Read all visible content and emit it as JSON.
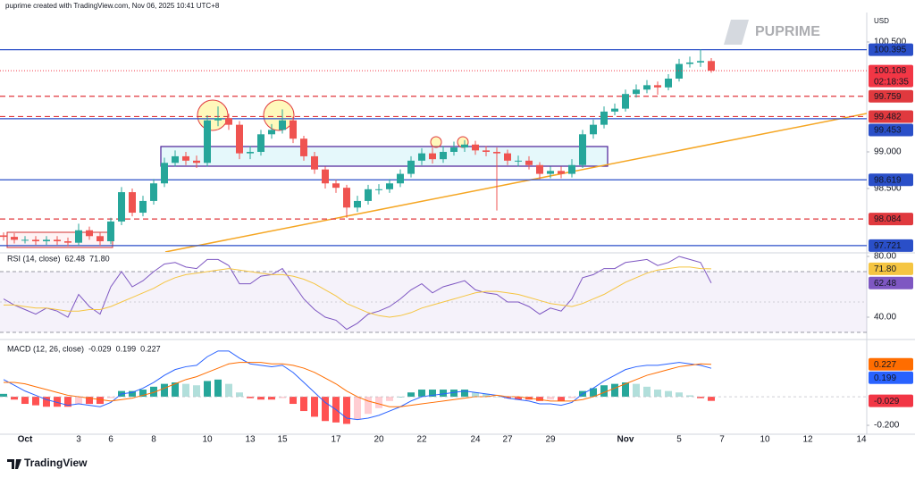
{
  "header": "puprime created with TradingView.com, Nov 06, 2025 10:41 UTC+8",
  "watermark": "PUPRIME",
  "footer": "TradingView",
  "chart_data": [
    {
      "type": "candlestick",
      "y_unit": "USD",
      "categories": [
        null,
        null,
        "Oct",
        null,
        null,
        null,
        null,
        "3",
        null,
        null,
        "6",
        null,
        null,
        null,
        "8",
        null,
        null,
        null,
        null,
        "10",
        null,
        null,
        null,
        "13",
        null,
        null,
        "15",
        null,
        null,
        null,
        null,
        "17",
        null,
        null,
        null,
        "20",
        null,
        null,
        null,
        "22",
        null,
        null,
        null,
        null,
        "24",
        null,
        null,
        "27",
        null,
        null,
        null,
        "29",
        null,
        null,
        null,
        null,
        null,
        null,
        "Nov",
        null,
        null,
        null,
        null,
        "5",
        null,
        null,
        null,
        "7",
        null,
        null,
        null,
        "10",
        null,
        null,
        null,
        "12",
        null,
        null,
        null,
        null,
        "14"
      ],
      "open": [
        97.86,
        97.84,
        97.8,
        97.8,
        97.78,
        97.8,
        97.78,
        97.76,
        97.93,
        97.85,
        97.78,
        98.05,
        98.45,
        98.17,
        98.33,
        98.57,
        98.85,
        98.94,
        98.88,
        98.85,
        99.43,
        99.46,
        99.37,
        98.98,
        99.0,
        99.24,
        99.3,
        99.43,
        99.18,
        98.94,
        98.76,
        98.57,
        98.51,
        98.24,
        98.33,
        98.49,
        98.49,
        98.57,
        98.7,
        98.88,
        98.98,
        98.9,
        99.0,
        99.06,
        99.1,
        99.02,
        99.0,
        98.98,
        98.88,
        98.88,
        98.82,
        98.7,
        98.74,
        98.7,
        98.82,
        99.24,
        99.37,
        99.55,
        99.59,
        99.79,
        99.85,
        99.91,
        99.88,
        100.0,
        100.2,
        100.22,
        100.24,
        null,
        null,
        null,
        null,
        null,
        null,
        null,
        null,
        null,
        null,
        null,
        null,
        null,
        null
      ],
      "high": [
        97.9,
        97.89,
        97.85,
        97.85,
        97.85,
        97.85,
        97.83,
        98.02,
        97.98,
        97.9,
        98.1,
        98.52,
        98.5,
        98.4,
        98.63,
        98.92,
        99.02,
        99.0,
        98.95,
        99.5,
        99.62,
        99.52,
        99.42,
        99.08,
        99.3,
        99.38,
        99.58,
        99.48,
        99.22,
        99.0,
        98.8,
        98.62,
        98.55,
        98.4,
        98.55,
        98.56,
        98.63,
        98.76,
        98.94,
        99.05,
        99.06,
        99.08,
        99.14,
        99.16,
        99.15,
        99.08,
        99.06,
        99.03,
        98.95,
        98.94,
        98.86,
        98.8,
        98.8,
        98.9,
        99.3,
        99.44,
        99.62,
        99.66,
        99.85,
        99.92,
        99.98,
        99.96,
        100.06,
        100.27,
        100.3,
        100.4,
        100.28,
        null,
        null,
        null,
        null,
        null,
        null,
        null,
        null,
        null,
        null,
        null,
        null,
        null,
        null
      ],
      "low": [
        97.79,
        97.75,
        97.75,
        97.73,
        97.73,
        97.73,
        97.71,
        97.72,
        97.8,
        97.72,
        97.74,
        98.0,
        98.12,
        98.12,
        98.28,
        98.52,
        98.8,
        98.82,
        98.78,
        98.8,
        99.35,
        99.3,
        98.9,
        98.9,
        98.95,
        99.18,
        99.25,
        99.12,
        98.88,
        98.7,
        98.5,
        98.44,
        98.1,
        98.18,
        98.28,
        98.42,
        98.44,
        98.52,
        98.65,
        98.82,
        98.84,
        98.85,
        98.95,
        99.0,
        98.96,
        98.94,
        98.2,
        98.82,
        98.8,
        98.76,
        98.63,
        98.64,
        98.64,
        98.65,
        98.78,
        99.18,
        99.32,
        99.5,
        99.55,
        99.74,
        99.8,
        99.78,
        99.84,
        99.96,
        100.15,
        100.16,
        100.08,
        null,
        null,
        null,
        null,
        null,
        null,
        null,
        null,
        null,
        null,
        null,
        null,
        null,
        null
      ],
      "close": [
        97.84,
        97.8,
        97.8,
        97.78,
        97.8,
        97.78,
        97.76,
        97.93,
        97.85,
        97.78,
        98.05,
        98.45,
        98.17,
        98.33,
        98.57,
        98.85,
        98.94,
        98.88,
        98.85,
        99.43,
        99.46,
        99.37,
        98.98,
        99.0,
        99.24,
        99.3,
        99.43,
        99.18,
        98.94,
        98.76,
        98.57,
        98.51,
        98.24,
        98.33,
        98.49,
        98.49,
        98.57,
        98.7,
        98.88,
        98.98,
        98.9,
        99.0,
        99.06,
        99.1,
        99.02,
        99.0,
        98.98,
        98.88,
        98.88,
        98.82,
        98.7,
        98.74,
        98.7,
        98.82,
        99.24,
        99.37,
        99.55,
        99.59,
        99.79,
        99.85,
        99.91,
        99.88,
        100.0,
        100.2,
        100.22,
        100.24,
        100.108,
        null,
        null,
        null,
        null,
        null,
        null,
        null,
        null,
        null,
        null,
        null,
        null,
        null,
        null
      ],
      "up_color": "#26a69a",
      "down_color": "#ef5350",
      "ylim": [
        97.634,
        100.89
      ],
      "yticks": [
        {
          "value": 100.5,
          "label": "100.500"
        },
        {
          "value": 99,
          "label": "99.000"
        },
        {
          "value": 98.5,
          "label": "98.500"
        }
      ],
      "levels": [
        {
          "value": 100.395,
          "color": "#2a4fc8",
          "style": "solid"
        },
        {
          "value": 99.759,
          "color": "#e0393e",
          "style": "dashed"
        },
        {
          "value": 99.482,
          "color": "#e0393e",
          "style": "dashed"
        },
        {
          "value": 99.453,
          "color": "#2a4fc8",
          "style": "solid"
        },
        {
          "value": 98.619,
          "color": "#2a4fc8",
          "style": "solid"
        },
        {
          "value": 98.084,
          "color": "#e0393e",
          "style": "dashed"
        },
        {
          "value": 97.721,
          "color": "#2a4fc8",
          "style": "solid"
        }
      ],
      "current_color": "#f23645",
      "countdown": "02:18:35"
    },
    {
      "type": "line",
      "title": "RSI (14, close)",
      "ylim": [
        28.24,
        81.76
      ],
      "yticks": [
        {
          "value": 80,
          "label": "80.00"
        },
        {
          "value": 40,
          "label": "40.00"
        }
      ],
      "band": [
        30,
        70
      ],
      "midline": 50,
      "band_color": "#7e57c2",
      "series": [
        {
          "color": "#7e57c2",
          "label_text_color": "#ffffff",
          "values": [
            52,
            48,
            45,
            42,
            46,
            44,
            40,
            55,
            47,
            42,
            60,
            70,
            60,
            64,
            70,
            75,
            76,
            73,
            72,
            78,
            78,
            74,
            62,
            62,
            67,
            68,
            72,
            62,
            52,
            45,
            40,
            38,
            32,
            36,
            42,
            44,
            47,
            52,
            58,
            62,
            56,
            60,
            62,
            64,
            58,
            56,
            55,
            50,
            50,
            47,
            42,
            46,
            44,
            52,
            66,
            68,
            72,
            72,
            76,
            77,
            78,
            74,
            76,
            80,
            78,
            76,
            62.48,
            null,
            null,
            null,
            null,
            null,
            null,
            null,
            null,
            null,
            null,
            null,
            null,
            null,
            null
          ]
        },
        {
          "color": "#f5c542",
          "label_text_color": "#131722",
          "last_value_label": "71.80",
          "values": [
            48,
            48,
            47,
            46,
            46,
            45,
            44,
            44,
            45,
            45,
            47,
            50,
            53,
            56,
            59,
            63,
            66,
            68,
            69,
            70,
            71,
            72,
            71,
            70,
            69,
            68,
            68,
            67,
            65,
            62,
            58,
            54,
            49,
            46,
            43,
            41,
            40,
            41,
            43,
            46,
            48,
            50,
            52,
            54,
            56,
            57,
            57,
            56,
            55,
            53,
            51,
            49,
            48,
            47,
            49,
            52,
            55,
            59,
            63,
            66,
            69,
            71,
            72,
            73,
            73,
            72,
            71.8,
            null,
            null,
            null,
            null,
            null,
            null,
            null,
            null,
            null,
            null,
            null,
            null,
            null,
            null
          ]
        }
      ]
    },
    {
      "type": "macd",
      "title": "MACD (12, 26, close)",
      "ylim": [
        -0.256,
        0.369
      ],
      "yticks": [
        {
          "value": -0.2,
          "label": "-0.200"
        }
      ],
      "series": [
        {
          "kind": "histogram",
          "color": "#f23645",
          "color_up": "#26a69a",
          "color_up_fading": "#b2dfdb",
          "color_down": "#ff5252",
          "color_down_fading": "#ffcdd2",
          "values": [
            0.02,
            -0.02,
            -0.05,
            -0.06,
            -0.07,
            -0.07,
            -0.07,
            -0.05,
            -0.05,
            -0.05,
            -0.01,
            0.04,
            0.04,
            0.05,
            0.07,
            0.09,
            0.1,
            0.09,
            0.08,
            0.11,
            0.12,
            0.09,
            0.03,
            -0.01,
            -0.02,
            -0.02,
            -0.01,
            -0.05,
            -0.1,
            -0.14,
            -0.17,
            -0.18,
            -0.19,
            -0.16,
            -0.12,
            -0.08,
            -0.03,
            0.0,
            0.03,
            0.05,
            0.05,
            0.05,
            0.05,
            0.05,
            0.03,
            0.02,
            0.0,
            -0.01,
            -0.02,
            -0.02,
            -0.03,
            -0.02,
            -0.03,
            -0.01,
            0.04,
            0.06,
            0.08,
            0.09,
            0.1,
            0.09,
            0.07,
            0.05,
            0.04,
            0.03,
            0.01,
            -0.01,
            -0.029,
            null,
            null,
            null,
            null,
            null,
            null,
            null,
            null,
            null,
            null,
            null,
            null,
            null,
            null
          ]
        },
        {
          "kind": "line",
          "color": "#2962ff",
          "values": [
            0.12,
            0.08,
            0.04,
            0.01,
            -0.02,
            -0.04,
            -0.06,
            -0.05,
            -0.06,
            -0.07,
            -0.04,
            0.02,
            0.03,
            0.06,
            0.1,
            0.15,
            0.19,
            0.21,
            0.22,
            0.28,
            0.32,
            0.32,
            0.27,
            0.23,
            0.22,
            0.21,
            0.22,
            0.17,
            0.1,
            0.03,
            -0.04,
            -0.09,
            -0.15,
            -0.16,
            -0.15,
            -0.13,
            -0.1,
            -0.07,
            -0.03,
            0.0,
            0.01,
            0.02,
            0.03,
            0.04,
            0.03,
            0.02,
            0.01,
            -0.01,
            -0.02,
            -0.03,
            -0.05,
            -0.05,
            -0.06,
            -0.04,
            0.02,
            0.06,
            0.11,
            0.15,
            0.19,
            0.21,
            0.22,
            0.22,
            0.23,
            0.24,
            0.23,
            0.22,
            0.199,
            null,
            null,
            null,
            null,
            null,
            null,
            null,
            null,
            null,
            null,
            null,
            null,
            null,
            null
          ]
        },
        {
          "kind": "line",
          "color": "#ff6d00",
          "values": [
            0.1,
            0.1,
            0.09,
            0.07,
            0.05,
            0.03,
            0.01,
            0.0,
            -0.01,
            -0.02,
            -0.03,
            -0.02,
            -0.01,
            0.01,
            0.03,
            0.06,
            0.09,
            0.12,
            0.14,
            0.17,
            0.2,
            0.23,
            0.24,
            0.24,
            0.24,
            0.23,
            0.23,
            0.22,
            0.2,
            0.17,
            0.13,
            0.09,
            0.04,
            0.0,
            -0.03,
            -0.05,
            -0.07,
            -0.07,
            -0.06,
            -0.05,
            -0.04,
            -0.03,
            -0.02,
            -0.01,
            0.0,
            0.0,
            0.01,
            0.0,
            0.0,
            -0.01,
            -0.02,
            -0.03,
            -0.03,
            -0.03,
            -0.02,
            0.0,
            0.03,
            0.06,
            0.09,
            0.12,
            0.15,
            0.17,
            0.19,
            0.21,
            0.22,
            0.23,
            0.227,
            null,
            null,
            null,
            null,
            null,
            null,
            null,
            null,
            null,
            null,
            null,
            null,
            null,
            null
          ]
        }
      ]
    }
  ]
}
